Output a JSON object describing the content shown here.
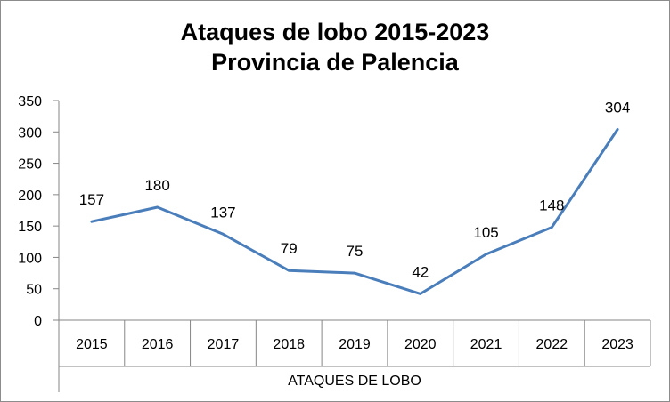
{
  "chart_data": {
    "type": "line",
    "title": [
      "Ataques de lobo 2015-2023",
      "Provincia de Palencia"
    ],
    "categories": [
      "2015",
      "2016",
      "2017",
      "2018",
      "2019",
      "2020",
      "2021",
      "2022",
      "2023"
    ],
    "group_label": "ATAQUES DE LOBO",
    "series": [
      {
        "values": [
          157,
          180,
          137,
          79,
          75,
          42,
          105,
          148,
          304
        ]
      }
    ],
    "ylim": [
      0,
      350
    ],
    "yticks": [
      0,
      50,
      100,
      150,
      200,
      250,
      300,
      350
    ],
    "grid": false,
    "legend": "none",
    "colors": {
      "line": "#4a7ebb",
      "axis": "#868686"
    }
  }
}
